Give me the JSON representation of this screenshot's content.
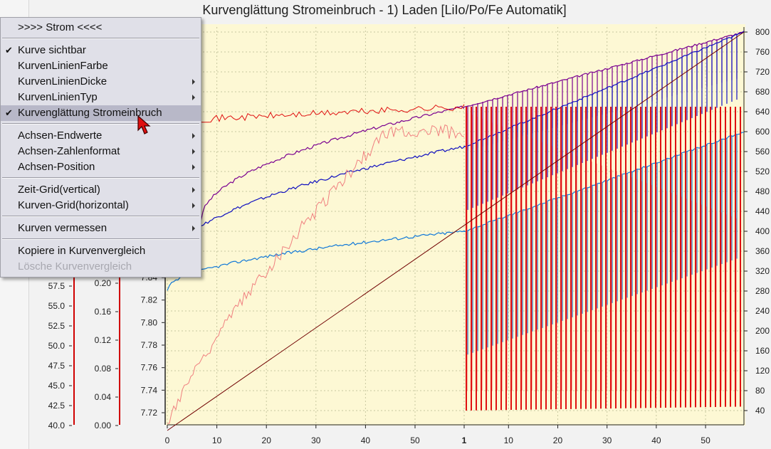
{
  "window": {
    "title": "Kurvenglättung  Stromeinbruch - 1) Laden [LiIo/Po/Fe Automatik]"
  },
  "colors": {
    "plot_bg": "#fdf8d4",
    "purple": "#7a0090",
    "blue": "#1010c0",
    "lightblue": "#1078d8",
    "red": "#e01010",
    "salmon": "#f08080",
    "darkred": "#700000",
    "menu_bg": "#e0e0e8",
    "menu_highlight": "#b8b8c8"
  },
  "context_menu": {
    "header": ">>>>  Strom  <<<<",
    "items": [
      {
        "label": "Kurve sichtbar",
        "checked": true,
        "submenu": false
      },
      {
        "label": "KurvenLinienFarbe",
        "checked": false,
        "submenu": false
      },
      {
        "label": "KurvenLinienDicke",
        "checked": false,
        "submenu": true
      },
      {
        "label": "KurvenLinienTyp",
        "checked": false,
        "submenu": true
      },
      {
        "label": "Kurvenglättung Stromeinbruch",
        "checked": true,
        "submenu": false,
        "highlighted": true
      },
      {
        "label": "Achsen-Endwerte",
        "checked": false,
        "submenu": true
      },
      {
        "label": "Achsen-Zahlenformat",
        "checked": false,
        "submenu": true
      },
      {
        "label": "Achsen-Position",
        "checked": false,
        "submenu": true
      },
      {
        "label": "Zeit-Grid(vertical)",
        "checked": false,
        "submenu": true
      },
      {
        "label": "Kurven-Grid(horizontal)",
        "checked": false,
        "submenu": true
      },
      {
        "label": "Kurven vermessen",
        "checked": false,
        "submenu": true
      },
      {
        "label": "Kopiere in Kurvenvergleich",
        "checked": false,
        "submenu": false
      },
      {
        "label": "Lösche Kurvenvergleich",
        "checked": false,
        "submenu": false,
        "disabled": true
      }
    ]
  },
  "chart_data": {
    "type": "line",
    "title": "Kurvenglättung  Stromeinbruch - 1) Laden [LiIo/Po/Fe Automatik]",
    "x_ticks": [
      "0",
      "10",
      "20",
      "30",
      "40",
      "50",
      "1",
      "10",
      "20",
      "30",
      "40",
      "50"
    ],
    "x_range_segments": [
      [
        0,
        59
      ],
      [
        0,
        57
      ]
    ],
    "axes": [
      {
        "name": "axis-1",
        "ticks": [
          "40.0",
          "42.5",
          "45.0",
          "47.5",
          "50.0",
          "52.5",
          "55.0",
          "57.5"
        ],
        "range": [
          40.0,
          57.5
        ]
      },
      {
        "name": "axis-2",
        "ticks": [
          "0.00",
          "0.04",
          "0.08",
          "0.12",
          "0.16",
          "0.20"
        ],
        "range": [
          0.0,
          0.2
        ]
      },
      {
        "name": "axis-3",
        "ticks": [
          "7.72",
          "7.74",
          "7.76",
          "7.78",
          "7.80",
          "7.82",
          "7.84"
        ],
        "range": [
          7.72,
          7.84
        ]
      },
      {
        "name": "axis-right",
        "ticks": [
          "40",
          "80",
          "120",
          "160",
          "200",
          "240",
          "280",
          "320",
          "360",
          "400",
          "440",
          "480",
          "520",
          "560",
          "600",
          "640",
          "680",
          "720",
          "760",
          "800"
        ],
        "range": [
          40,
          800
        ]
      }
    ],
    "series": [
      {
        "color": "purple",
        "start": 420,
        "mid": 650,
        "end": 800
      },
      {
        "color": "blue",
        "start": 330,
        "mid": 570,
        "end": 800
      },
      {
        "color": "lightblue",
        "start": 280,
        "mid": 400,
        "end": 600
      },
      {
        "color": "salmon",
        "start": 10,
        "mid": 600,
        "end": 380
      },
      {
        "color": "red",
        "start": 640,
        "mid": 650,
        "end": 645
      },
      {
        "color": "darkred",
        "start": 0,
        "mid": 420,
        "end": 800
      }
    ]
  }
}
